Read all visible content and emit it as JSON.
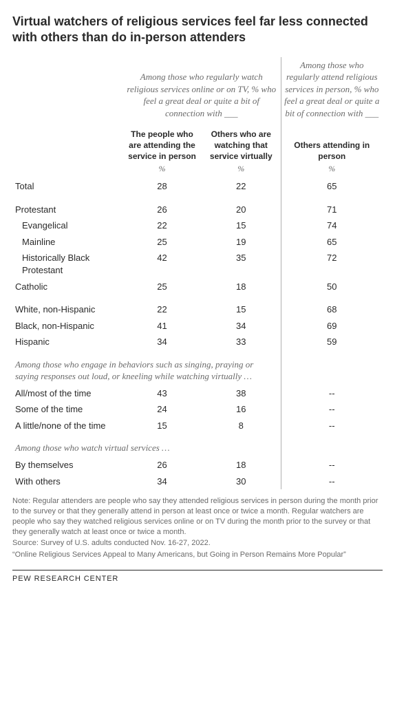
{
  "title": "Virtual watchers of religious services feel far less connected with others than do in-person attenders",
  "groupHeaders": {
    "left": "Among those who regularly watch religious services online or on TV, % who feel a great deal or quite a bit of connection with ___",
    "right": "Among those who regularly attend religious services in person, % who feel a great deal or quite a bit of connection with ___"
  },
  "colHeaders": {
    "c1": "The people who are attending the service in person",
    "c2": "Others who are watching that service virtually",
    "c3": "Others attending in person"
  },
  "pctLabel": "%",
  "rows": {
    "total": {
      "label": "Total",
      "v1": "28",
      "v2": "22",
      "v3": "65"
    },
    "protestant": {
      "label": "Protestant",
      "v1": "26",
      "v2": "20",
      "v3": "71"
    },
    "evangelical": {
      "label": "Evangelical",
      "v1": "22",
      "v2": "15",
      "v3": "74"
    },
    "mainline": {
      "label": "Mainline",
      "v1": "25",
      "v2": "19",
      "v3": "65"
    },
    "hbp": {
      "label": "Historically Black Protestant",
      "v1": "42",
      "v2": "35",
      "v3": "72"
    },
    "catholic": {
      "label": "Catholic",
      "v1": "25",
      "v2": "18",
      "v3": "50"
    },
    "white": {
      "label": "White, non-Hispanic",
      "v1": "22",
      "v2": "15",
      "v3": "68"
    },
    "black": {
      "label": "Black, non-Hispanic",
      "v1": "41",
      "v2": "34",
      "v3": "69"
    },
    "hispanic": {
      "label": "Hispanic",
      "v1": "34",
      "v2": "33",
      "v3": "59"
    },
    "sec1": {
      "label": "Among those who engage in behaviors such as singing, praying or saying responses out loud, or kneeling while watching virtually …"
    },
    "allmost": {
      "label": "All/most of the time",
      "v1": "43",
      "v2": "38",
      "v3": "--"
    },
    "some": {
      "label": "Some of the time",
      "v1": "24",
      "v2": "16",
      "v3": "--"
    },
    "little": {
      "label": "A little/none of the time",
      "v1": "15",
      "v2": "8",
      "v3": "--"
    },
    "sec2": {
      "label": "Among those who watch virtual services …"
    },
    "bythem": {
      "label": "By themselves",
      "v1": "26",
      "v2": "18",
      "v3": "--"
    },
    "withoth": {
      "label": "With others",
      "v1": "34",
      "v2": "30",
      "v3": "--"
    }
  },
  "note": "Note: Regular attenders are people who say they attended religious services in person during the month prior to the survey or that they generally attend in person at least once or twice a month. Regular watchers are people who say they watched religious services online or on TV during the month prior to the survey or that they generally watch at least once or twice a month.",
  "sourceText": "Source: Survey of U.S. adults conducted Nov. 16-27, 2022.",
  "quoteText": "“Online Religious Services Appeal to Many Americans, but Going in Person Remains More Popular”",
  "footer": "PEW RESEARCH CENTER"
}
